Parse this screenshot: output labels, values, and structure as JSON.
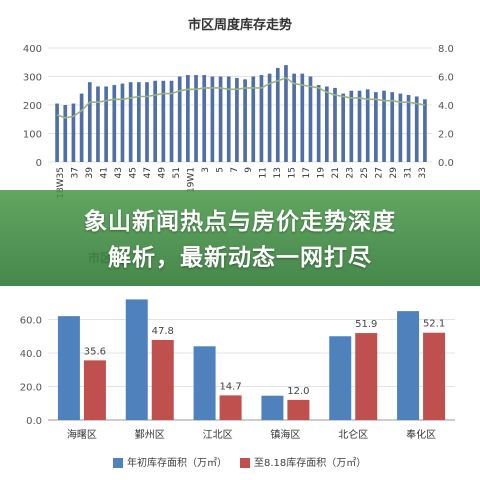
{
  "chart_data": [
    {
      "type": "bar+line",
      "title": "市区周度库存走势",
      "bar_ylim": [
        0,
        400
      ],
      "bar_yticks": [
        "0",
        "100",
        "200",
        "300",
        "400"
      ],
      "line_ylim": [
        0,
        8
      ],
      "line_yticks": [
        "0.0",
        "2.0",
        "4.0",
        "6.0",
        "8.0"
      ],
      "xtick_labels": [
        "18W35",
        "37",
        "39",
        "41",
        "43",
        "45",
        "47",
        "49",
        "51",
        "19W1",
        "3",
        "5",
        "7",
        "9",
        "11",
        "13",
        "15",
        "17",
        "19",
        "21",
        "23",
        "25",
        "27",
        "29",
        "31",
        "33"
      ],
      "bar_values": [
        205,
        200,
        205,
        240,
        280,
        265,
        265,
        270,
        275,
        280,
        280,
        280,
        285,
        285,
        285,
        300,
        305,
        305,
        305,
        300,
        300,
        300,
        295,
        290,
        300,
        305,
        310,
        330,
        340,
        310,
        310,
        300,
        270,
        265,
        260,
        240,
        250,
        250,
        255,
        245,
        250,
        245,
        240,
        235,
        230,
        220
      ],
      "line_values": [
        3.3,
        3.1,
        3.2,
        3.6,
        4.2,
        4.2,
        4.3,
        4.4,
        4.4,
        4.5,
        4.6,
        4.6,
        4.7,
        4.8,
        4.8,
        5.0,
        5.1,
        5.1,
        5.2,
        5.2,
        5.2,
        5.1,
        5.1,
        5.2,
        5.2,
        5.2,
        5.5,
        5.7,
        5.9,
        5.5,
        5.4,
        5.3,
        5.2,
        4.9,
        4.7,
        4.6,
        4.5,
        4.5,
        4.4,
        4.4,
        4.3,
        4.3,
        4.2,
        4.2,
        4.1,
        4.0
      ],
      "bar_color": "#4f6fa6",
      "line_color": "#9cb47a",
      "grid": true
    },
    {
      "type": "bar",
      "categories": [
        "海曙区",
        "鄞州区",
        "江北区",
        "镇海区",
        "北仑区",
        "奉化区"
      ],
      "series": [
        {
          "name": "年初库存面积（万㎡）",
          "values": [
            62,
            72,
            44,
            14.5,
            50,
            65
          ],
          "color": "#4f81bd"
        },
        {
          "name": "至8.18库存面积（万㎡）",
          "values": [
            35.6,
            47.8,
            14.7,
            12.0,
            51.9,
            52.1
          ],
          "color": "#c0504d"
        }
      ],
      "data_labels": [
        "35.6",
        "47.8",
        "14.7",
        "12.0",
        "51.9",
        "52.1"
      ],
      "ylim": [
        0,
        80
      ],
      "yticks": [
        "0.0",
        "20.0",
        "40.0",
        "60.0"
      ],
      "grid": true,
      "legend": "bottom"
    }
  ],
  "banner": {
    "line1": "象山新闻热点与房价走势深度",
    "line2": "解析，最新动态一网打尽",
    "color": "#3f8f46"
  },
  "occluded_title_fragment": "市区住"
}
